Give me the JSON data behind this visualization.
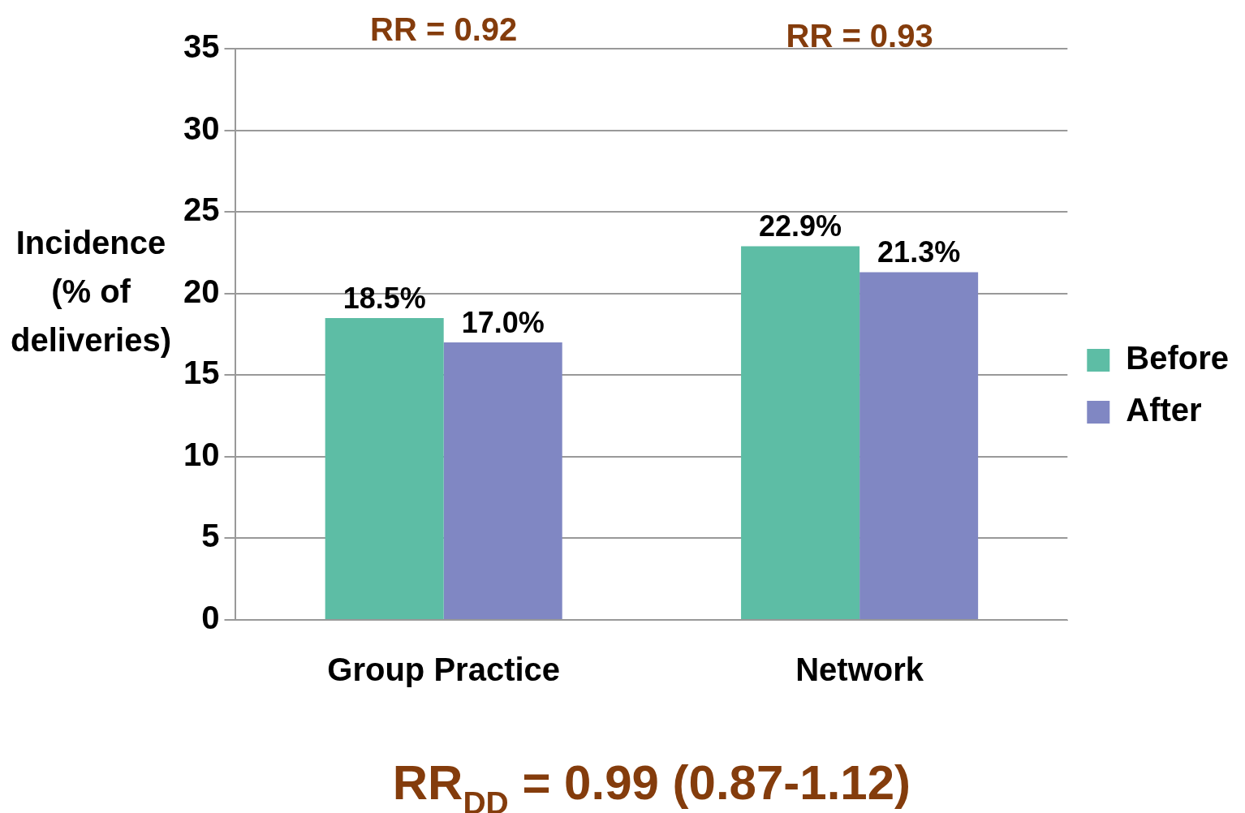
{
  "chart_data": {
    "type": "bar",
    "ylabel": "Incidence (% of deliveries)",
    "categories": [
      "Group Practice",
      "Network"
    ],
    "series": [
      {
        "name": "Before",
        "color": "#5dbda5",
        "values": [
          18.5,
          22.9
        ],
        "value_labels": [
          "18.5%",
          "22.9%"
        ]
      },
      {
        "name": "After",
        "color": "#8087c3",
        "values": [
          17.0,
          21.3
        ],
        "value_labels": [
          "17.0%",
          "21.3%"
        ]
      }
    ],
    "ylim": [
      0,
      35
    ],
    "yticks": [
      0,
      5,
      10,
      15,
      20,
      25,
      30,
      35
    ],
    "grid": "y",
    "legend": "right",
    "annotations": [
      "RR = 0.92",
      "RR = 0.93",
      "RR$_{DD}$ = 0.99 (0.87-1.12)"
    ]
  }
}
